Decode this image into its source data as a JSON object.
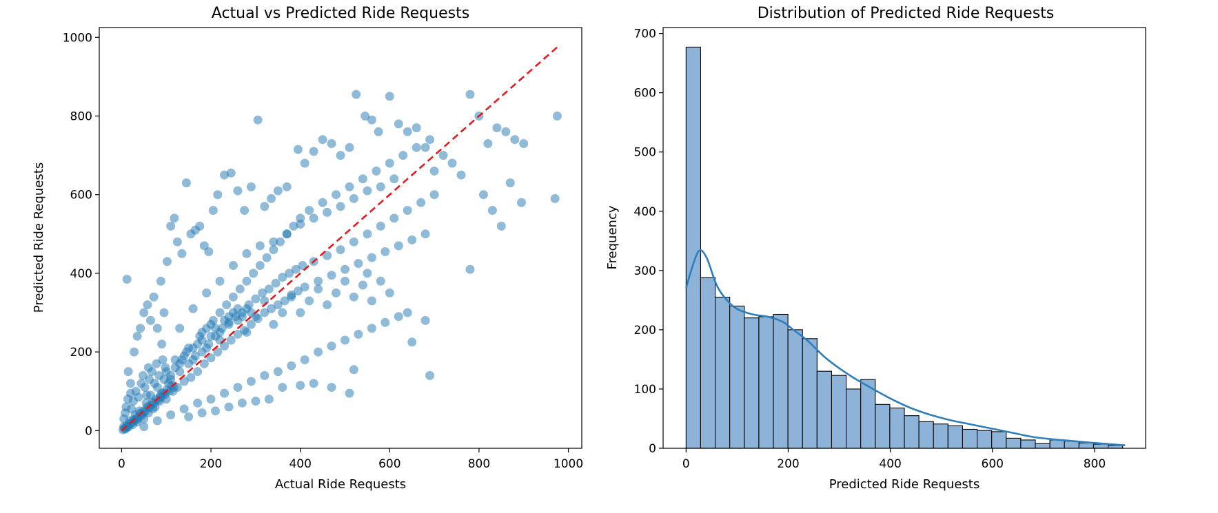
{
  "chart_data": [
    {
      "type": "scatter",
      "title": "Actual vs Predicted Ride Requests",
      "xlabel": "Actual Ride Requests",
      "ylabel": "Predicted Ride Requests",
      "xlim": [
        -50,
        1030
      ],
      "ylim": [
        -45,
        1025
      ],
      "xticks": [
        0,
        200,
        400,
        600,
        800,
        1000
      ],
      "yticks": [
        0,
        200,
        400,
        600,
        800,
        1000
      ],
      "grid": false,
      "point_color": "#1f77b4",
      "point_alpha": 0.5,
      "reference_line": {
        "from": [
          0,
          0
        ],
        "to": [
          980,
          980
        ],
        "color": "#e41a1c",
        "style": "dashed"
      },
      "points": [
        [
          5,
          10
        ],
        [
          12,
          8
        ],
        [
          18,
          25
        ],
        [
          25,
          15
        ],
        [
          30,
          40
        ],
        [
          35,
          22
        ],
        [
          40,
          50
        ],
        [
          45,
          38
        ],
        [
          50,
          30
        ],
        [
          55,
          70
        ],
        [
          60,
          45
        ],
        [
          65,
          90
        ],
        [
          70,
          55
        ],
        [
          75,
          60
        ],
        [
          80,
          110
        ],
        [
          85,
          75
        ],
        [
          90,
          95
        ],
        [
          95,
          130
        ],
        [
          100,
          80
        ],
        [
          105,
          120
        ],
        [
          110,
          140
        ],
        [
          115,
          100
        ],
        [
          120,
          160
        ],
        [
          125,
          110
        ],
        [
          130,
          150
        ],
        [
          135,
          180
        ],
        [
          140,
          125
        ],
        [
          145,
          200
        ],
        [
          150,
          170
        ],
        [
          155,
          135
        ],
        [
          160,
          210
        ],
        [
          165,
          190
        ],
        [
          170,
          150
        ],
        [
          175,
          240
        ],
        [
          180,
          200
        ],
        [
          185,
          170
        ],
        [
          190,
          260
        ],
        [
          195,
          220
        ],
        [
          200,
          185
        ],
        [
          205,
          280
        ],
        [
          210,
          240
        ],
        [
          215,
          200
        ],
        [
          220,
          300
        ],
        [
          225,
          260
        ],
        [
          230,
          215
        ],
        [
          235,
          320
        ],
        [
          240,
          275
        ],
        [
          245,
          230
        ],
        [
          250,
          340
        ],
        [
          255,
          290
        ],
        [
          260,
          245
        ],
        [
          265,
          360
        ],
        [
          270,
          300
        ],
        [
          275,
          255
        ],
        [
          280,
          380
        ],
        [
          285,
          320
        ],
        [
          290,
          270
        ],
        [
          295,
          400
        ],
        [
          300,
          335
        ],
        [
          305,
          285
        ],
        [
          310,
          420
        ],
        [
          315,
          350
        ],
        [
          320,
          300
        ],
        [
          325,
          440
        ],
        [
          330,
          360
        ],
        [
          335,
          310
        ],
        [
          340,
          460
        ],
        [
          345,
          375
        ],
        [
          350,
          320
        ],
        [
          355,
          480
        ],
        [
          360,
          390
        ],
        [
          365,
          330
        ],
        [
          370,
          500
        ],
        [
          375,
          400
        ],
        [
          380,
          345
        ],
        [
          385,
          520
        ],
        [
          390,
          410
        ],
        [
          395,
          355
        ],
        [
          400,
          540
        ],
        [
          405,
          420
        ],
        [
          410,
          365
        ],
        [
          420,
          560
        ],
        [
          430,
          430
        ],
        [
          440,
          380
        ],
        [
          450,
          580
        ],
        [
          460,
          445
        ],
        [
          470,
          395
        ],
        [
          480,
          600
        ],
        [
          490,
          460
        ],
        [
          500,
          410
        ],
        [
          510,
          620
        ],
        [
          520,
          480
        ],
        [
          530,
          425
        ],
        [
          540,
          640
        ],
        [
          550,
          500
        ],
        [
          560,
          440
        ],
        [
          570,
          660
        ],
        [
          580,
          520
        ],
        [
          590,
          455
        ],
        [
          600,
          680
        ],
        [
          610,
          540
        ],
        [
          620,
          470
        ],
        [
          630,
          700
        ],
        [
          640,
          560
        ],
        [
          650,
          485
        ],
        [
          660,
          720
        ],
        [
          670,
          580
        ],
        [
          680,
          500
        ],
        [
          690,
          740
        ],
        [
          700,
          600
        ],
        [
          15,
          150
        ],
        [
          20,
          120
        ],
        [
          28,
          200
        ],
        [
          35,
          240
        ],
        [
          42,
          260
        ],
        [
          50,
          300
        ],
        [
          58,
          320
        ],
        [
          65,
          280
        ],
        [
          72,
          340
        ],
        [
          80,
          260
        ],
        [
          88,
          380
        ],
        [
          95,
          300
        ],
        [
          102,
          430
        ],
        [
          110,
          520
        ],
        [
          118,
          540
        ],
        [
          125,
          480
        ],
        [
          135,
          450
        ],
        [
          145,
          630
        ],
        [
          155,
          500
        ],
        [
          165,
          510
        ],
        [
          175,
          520
        ],
        [
          185,
          470
        ],
        [
          195,
          455
        ],
        [
          205,
          560
        ],
        [
          215,
          600
        ],
        [
          230,
          650
        ],
        [
          245,
          655
        ],
        [
          260,
          610
        ],
        [
          275,
          560
        ],
        [
          290,
          620
        ],
        [
          305,
          790
        ],
        [
          320,
          570
        ],
        [
          335,
          590
        ],
        [
          350,
          610
        ],
        [
          370,
          620
        ],
        [
          395,
          715
        ],
        [
          410,
          680
        ],
        [
          430,
          710
        ],
        [
          450,
          740
        ],
        [
          470,
          730
        ],
        [
          490,
          700
        ],
        [
          510,
          720
        ],
        [
          525,
          855
        ],
        [
          545,
          800
        ],
        [
          560,
          790
        ],
        [
          575,
          760
        ],
        [
          600,
          850
        ],
        [
          620,
          780
        ],
        [
          640,
          760
        ],
        [
          660,
          770
        ],
        [
          680,
          720
        ],
        [
          700,
          660
        ],
        [
          720,
          700
        ],
        [
          740,
          680
        ],
        [
          760,
          650
        ],
        [
          780,
          855
        ],
        [
          800,
          800
        ],
        [
          820,
          730
        ],
        [
          840,
          770
        ],
        [
          860,
          760
        ],
        [
          880,
          740
        ],
        [
          895,
          580
        ],
        [
          900,
          730
        ],
        [
          970,
          590
        ],
        [
          975,
          800
        ],
        [
          780,
          410
        ],
        [
          810,
          600
        ],
        [
          830,
          560
        ],
        [
          850,
          520
        ],
        [
          870,
          630
        ],
        [
          50,
          10
        ],
        [
          80,
          25
        ],
        [
          110,
          40
        ],
        [
          140,
          55
        ],
        [
          170,
          70
        ],
        [
          200,
          80
        ],
        [
          230,
          95
        ],
        [
          260,
          110
        ],
        [
          290,
          125
        ],
        [
          320,
          140
        ],
        [
          350,
          150
        ],
        [
          380,
          165
        ],
        [
          410,
          180
        ],
        [
          440,
          200
        ],
        [
          470,
          215
        ],
        [
          500,
          230
        ],
        [
          530,
          245
        ],
        [
          560,
          260
        ],
        [
          590,
          275
        ],
        [
          620,
          290
        ],
        [
          650,
          225
        ],
        [
          680,
          280
        ],
        [
          690,
          140
        ],
        [
          640,
          300
        ],
        [
          600,
          350
        ],
        [
          580,
          380
        ],
        [
          550,
          400
        ],
        [
          520,
          155
        ],
        [
          510,
          95
        ],
        [
          470,
          110
        ],
        [
          430,
          120
        ],
        [
          400,
          115
        ],
        [
          360,
          110
        ],
        [
          330,
          80
        ],
        [
          300,
          75
        ],
        [
          270,
          70
        ],
        [
          240,
          60
        ],
        [
          210,
          50
        ],
        [
          180,
          45
        ],
        [
          150,
          35
        ],
        [
          12,
          385
        ],
        [
          60,
          160
        ],
        [
          90,
          220
        ],
        [
          130,
          260
        ],
        [
          160,
          310
        ],
        [
          190,
          350
        ],
        [
          220,
          380
        ],
        [
          250,
          420
        ],
        [
          280,
          450
        ],
        [
          310,
          470
        ],
        [
          340,
          480
        ],
        [
          370,
          500
        ],
        [
          400,
          525
        ],
        [
          430,
          540
        ],
        [
          460,
          555
        ],
        [
          490,
          570
        ],
        [
          520,
          590
        ],
        [
          550,
          610
        ],
        [
          580,
          620
        ],
        [
          610,
          640
        ],
        [
          180,
          250
        ],
        [
          200,
          270
        ],
        [
          220,
          230
        ],
        [
          240,
          290
        ],
        [
          260,
          310
        ],
        [
          280,
          250
        ],
        [
          300,
          290
        ],
        [
          320,
          330
        ],
        [
          340,
          270
        ],
        [
          360,
          300
        ],
        [
          380,
          340
        ],
        [
          400,
          300
        ],
        [
          420,
          330
        ],
        [
          440,
          360
        ],
        [
          460,
          320
        ],
        [
          480,
          350
        ],
        [
          500,
          380
        ],
        [
          520,
          340
        ],
        [
          540,
          370
        ],
        [
          560,
          330
        ],
        [
          100,
          150
        ],
        [
          110,
          130
        ],
        [
          120,
          180
        ],
        [
          130,
          170
        ],
        [
          140,
          190
        ],
        [
          150,
          210
        ],
        [
          160,
          180
        ],
        [
          170,
          220
        ],
        [
          180,
          230
        ],
        [
          190,
          210
        ],
        [
          200,
          240
        ],
        [
          210,
          260
        ],
        [
          220,
          250
        ],
        [
          230,
          280
        ],
        [
          240,
          270
        ],
        [
          250,
          300
        ],
        [
          260,
          280
        ],
        [
          270,
          290
        ],
        [
          280,
          310
        ],
        [
          290,
          300
        ],
        [
          5,
          30
        ],
        [
          8,
          45
        ],
        [
          10,
          60
        ],
        [
          14,
          80
        ],
        [
          20,
          95
        ],
        [
          22,
          55
        ],
        [
          26,
          75
        ],
        [
          32,
          100
        ],
        [
          38,
          85
        ],
        [
          44,
          120
        ],
        [
          48,
          140
        ],
        [
          52,
          110
        ],
        [
          56,
          90
        ],
        [
          62,
          130
        ],
        [
          68,
          150
        ],
        [
          74,
          120
        ],
        [
          78,
          170
        ],
        [
          84,
          140
        ],
        [
          92,
          180
        ],
        [
          98,
          160
        ],
        [
          3,
          2
        ],
        [
          6,
          5
        ],
        [
          9,
          4
        ],
        [
          11,
          12
        ],
        [
          16,
          10
        ],
        [
          19,
          18
        ],
        [
          23,
          20
        ],
        [
          27,
          28
        ],
        [
          31,
          26
        ],
        [
          34,
          33
        ],
        [
          37,
          30
        ],
        [
          41,
          44
        ],
        [
          46,
          42
        ],
        [
          49,
          50
        ],
        [
          53,
          48
        ],
        [
          57,
          60
        ],
        [
          61,
          58
        ],
        [
          66,
          64
        ],
        [
          69,
          72
        ],
        [
          73,
          70
        ],
        [
          77,
          80
        ],
        [
          82,
          78
        ],
        [
          86,
          88
        ],
        [
          89,
          85
        ],
        [
          93,
          96
        ],
        [
          97,
          92
        ],
        [
          101,
          104
        ],
        [
          106,
          100
        ],
        [
          112,
          115
        ],
        [
          117,
          110
        ]
      ]
    },
    {
      "type": "histogram",
      "title": "Distribution of Predicted Ride Requests",
      "xlabel": "Predicted Ride Requests",
      "ylabel": "Frequency",
      "xlim": [
        -45,
        900
      ],
      "ylim": [
        0,
        710
      ],
      "xticks": [
        0,
        200,
        400,
        600,
        800
      ],
      "yticks": [
        0,
        100,
        200,
        300,
        400,
        500,
        600,
        700
      ],
      "grid": false,
      "bar_fill": "#8db4d8",
      "bar_edge": "#000000",
      "kde_color": "#2e7ebc",
      "bin_start": 0,
      "bin_width": 28.5,
      "counts": [
        677,
        288,
        255,
        240,
        220,
        222,
        226,
        200,
        185,
        130,
        123,
        100,
        116,
        74,
        68,
        55,
        45,
        41,
        38,
        32,
        30,
        28,
        17,
        14,
        8,
        14,
        12,
        9,
        7,
        5
      ],
      "kde": [
        [
          0,
          270
        ],
        [
          10,
          300
        ],
        [
          25,
          333
        ],
        [
          40,
          322
        ],
        [
          60,
          275
        ],
        [
          80,
          250
        ],
        [
          100,
          235
        ],
        [
          130,
          226
        ],
        [
          160,
          222
        ],
        [
          190,
          213
        ],
        [
          210,
          200
        ],
        [
          240,
          180
        ],
        [
          270,
          155
        ],
        [
          300,
          135
        ],
        [
          330,
          118
        ],
        [
          360,
          103
        ],
        [
          400,
          84
        ],
        [
          440,
          68
        ],
        [
          480,
          56
        ],
        [
          520,
          47
        ],
        [
          560,
          40
        ],
        [
          600,
          33
        ],
        [
          640,
          26
        ],
        [
          680,
          19
        ],
        [
          720,
          15
        ],
        [
          760,
          12
        ],
        [
          800,
          9
        ],
        [
          830,
          7
        ],
        [
          860,
          5
        ]
      ]
    }
  ]
}
